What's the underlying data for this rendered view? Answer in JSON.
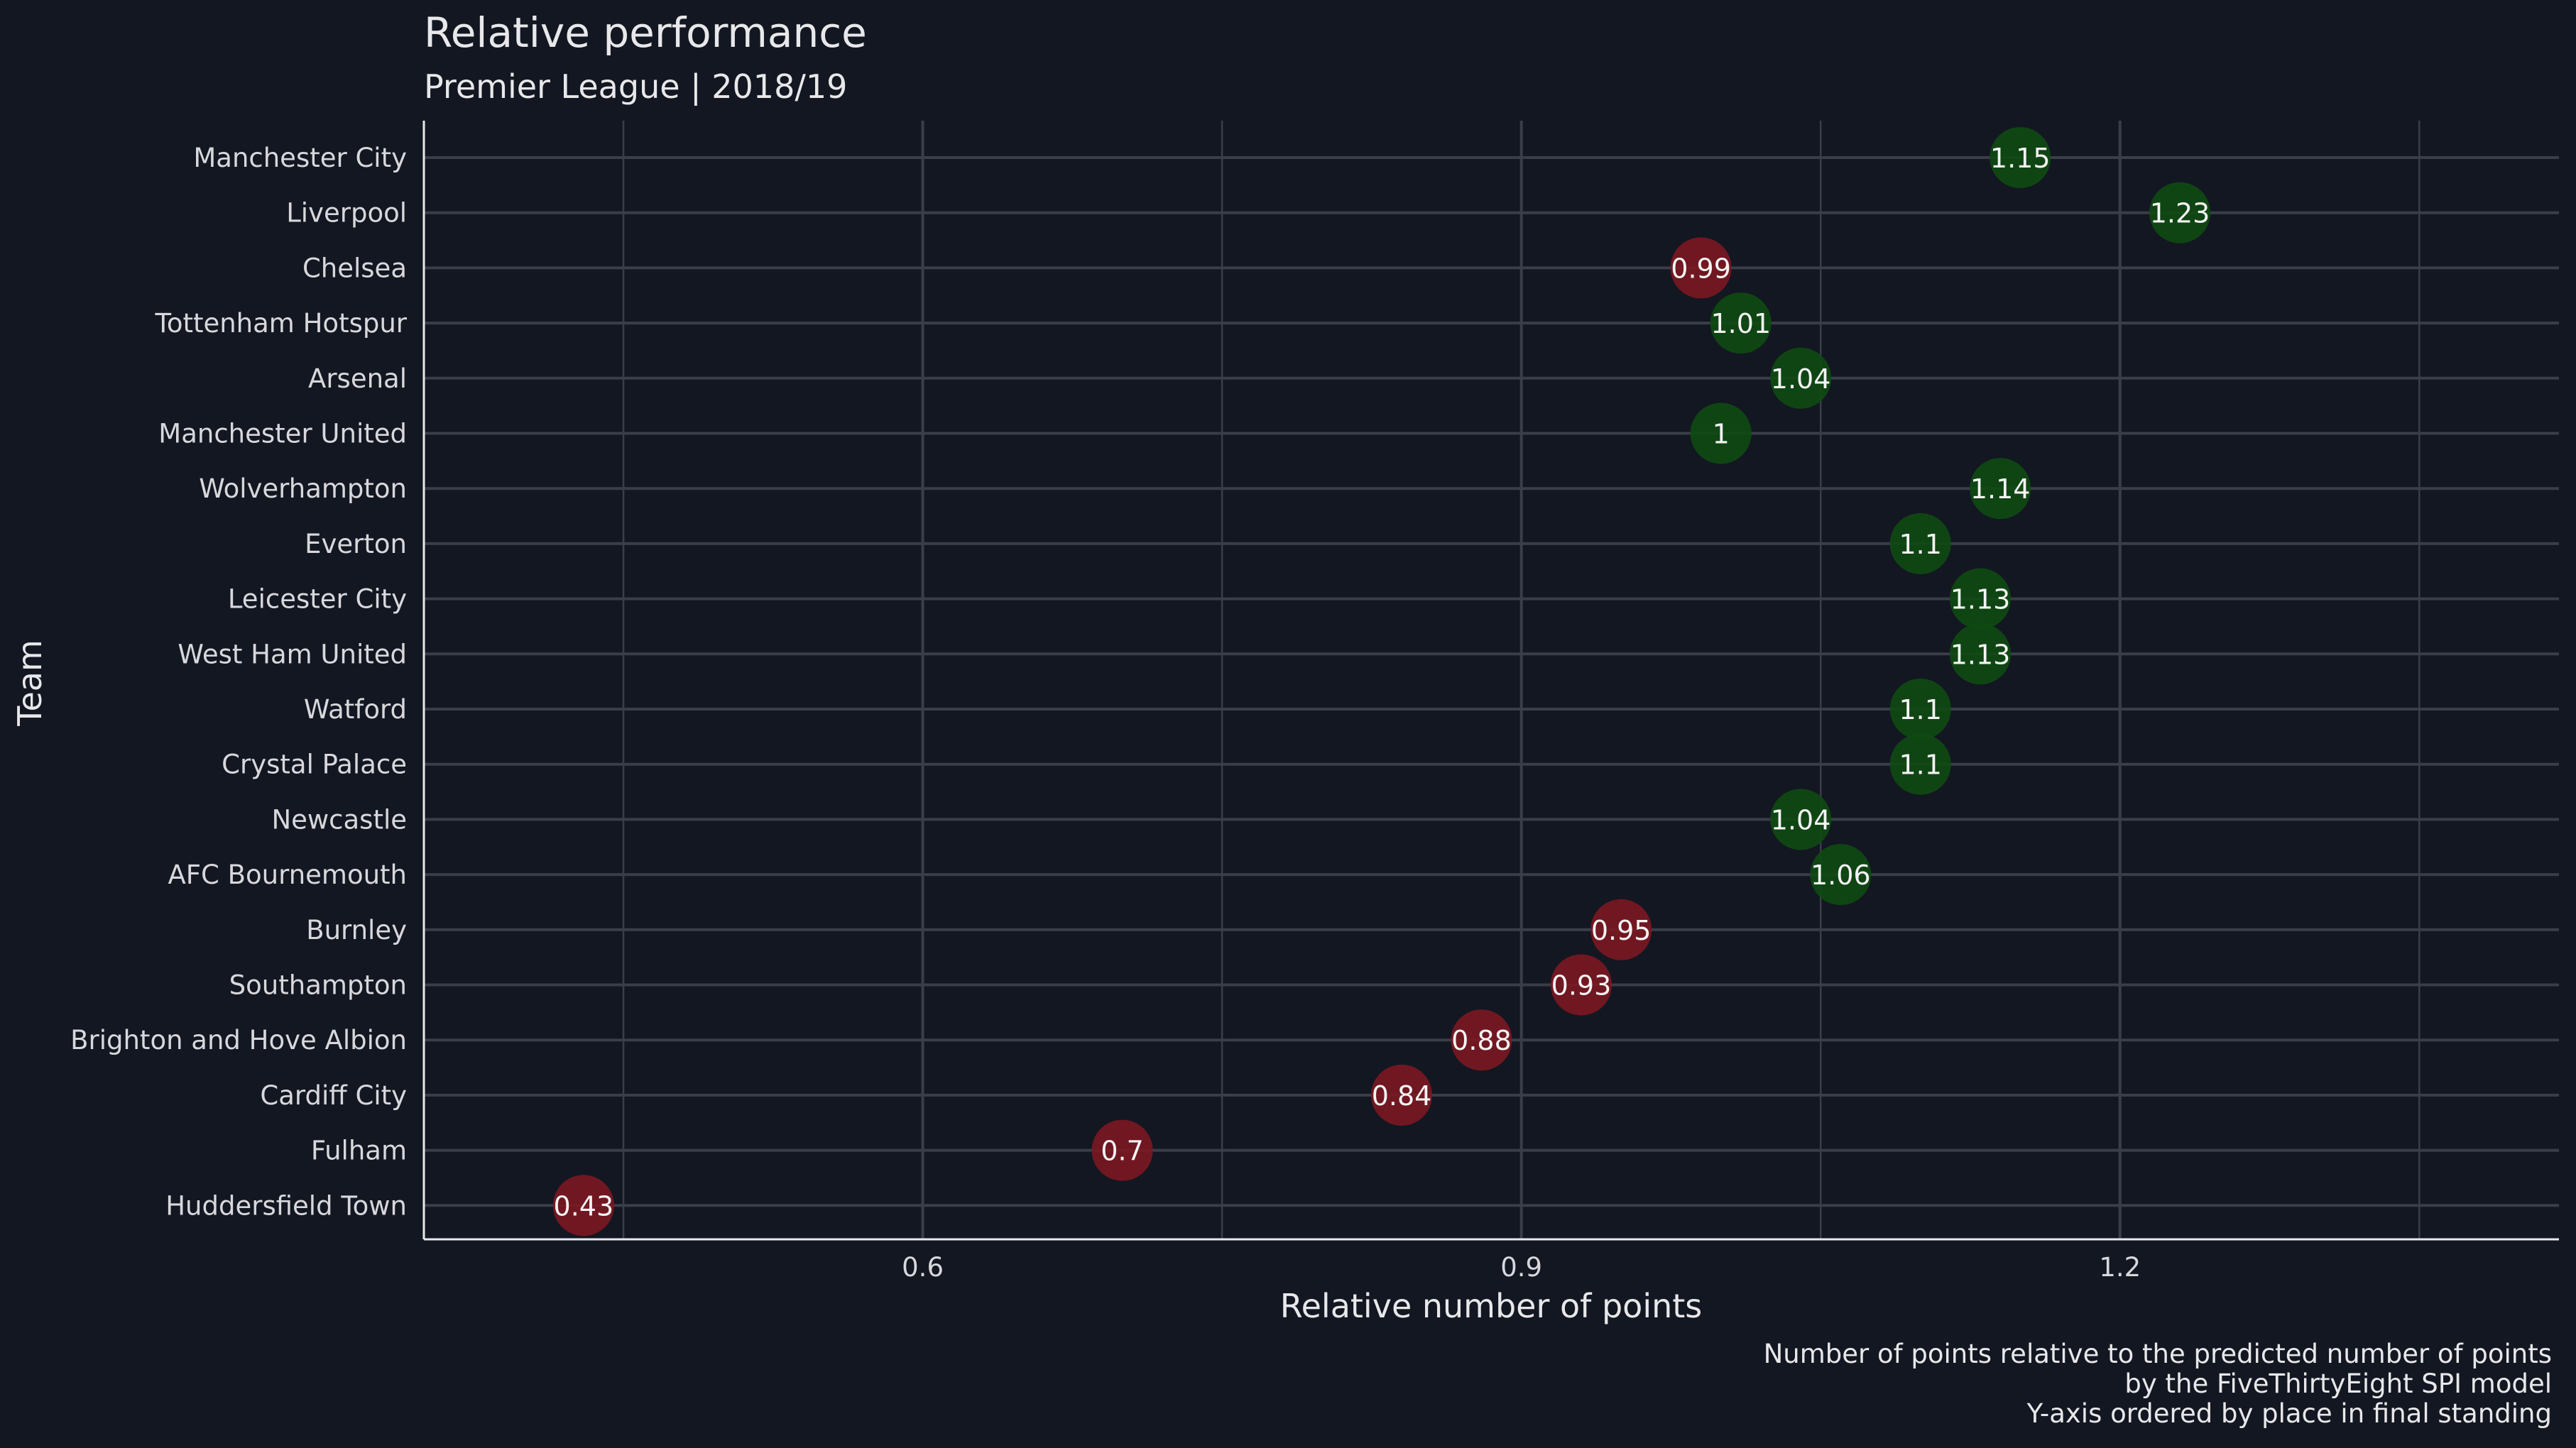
{
  "colors": {
    "background": "#131722",
    "grid": "#3a3e48",
    "axis": "#e8e8ea",
    "text": "#e8e8ea",
    "over": "#0f4a12",
    "under": "#7a1822"
  },
  "chart_data": {
    "type": "scatter",
    "title": "Relative performance",
    "subtitle": "Premier League  |  2018/19",
    "xlabel": "Relative number of points",
    "ylabel": "Team",
    "xlim": [
      0.35,
      1.42
    ],
    "x_ticks": [
      0.6,
      0.9,
      1.2
    ],
    "x_tick_labels": [
      "0.6",
      "0.9",
      "1.2"
    ],
    "grid": true,
    "caption": [
      "Number of points relative to the predicted number of points",
      "by the FiveThirtyEight SPI model",
      "Y-axis ordered by place in final standing"
    ],
    "teams": [
      {
        "name": "Manchester City",
        "value": 1.15,
        "label": "1.15"
      },
      {
        "name": "Liverpool",
        "value": 1.23,
        "label": "1.23"
      },
      {
        "name": "Chelsea",
        "value": 0.99,
        "label": "0.99"
      },
      {
        "name": "Tottenham Hotspur",
        "value": 1.01,
        "label": "1.01"
      },
      {
        "name": "Arsenal",
        "value": 1.04,
        "label": "1.04"
      },
      {
        "name": "Manchester United",
        "value": 1.0,
        "label": "1"
      },
      {
        "name": "Wolverhampton",
        "value": 1.14,
        "label": "1.14"
      },
      {
        "name": "Everton",
        "value": 1.1,
        "label": "1.1"
      },
      {
        "name": "Leicester City",
        "value": 1.13,
        "label": "1.13"
      },
      {
        "name": "West Ham United",
        "value": 1.13,
        "label": "1.13"
      },
      {
        "name": "Watford",
        "value": 1.1,
        "label": "1.1"
      },
      {
        "name": "Crystal Palace",
        "value": 1.1,
        "label": "1.1"
      },
      {
        "name": "Newcastle",
        "value": 1.04,
        "label": "1.04"
      },
      {
        "name": "AFC Bournemouth",
        "value": 1.06,
        "label": "1.06"
      },
      {
        "name": "Burnley",
        "value": 0.95,
        "label": "0.95"
      },
      {
        "name": "Southampton",
        "value": 0.93,
        "label": "0.93"
      },
      {
        "name": "Brighton and Hove Albion",
        "value": 0.88,
        "label": "0.88"
      },
      {
        "name": "Cardiff City",
        "value": 0.84,
        "label": "0.84"
      },
      {
        "name": "Fulham",
        "value": 0.7,
        "label": "0.7"
      },
      {
        "name": "Huddersfield Town",
        "value": 0.43,
        "label": "0.43"
      }
    ]
  }
}
